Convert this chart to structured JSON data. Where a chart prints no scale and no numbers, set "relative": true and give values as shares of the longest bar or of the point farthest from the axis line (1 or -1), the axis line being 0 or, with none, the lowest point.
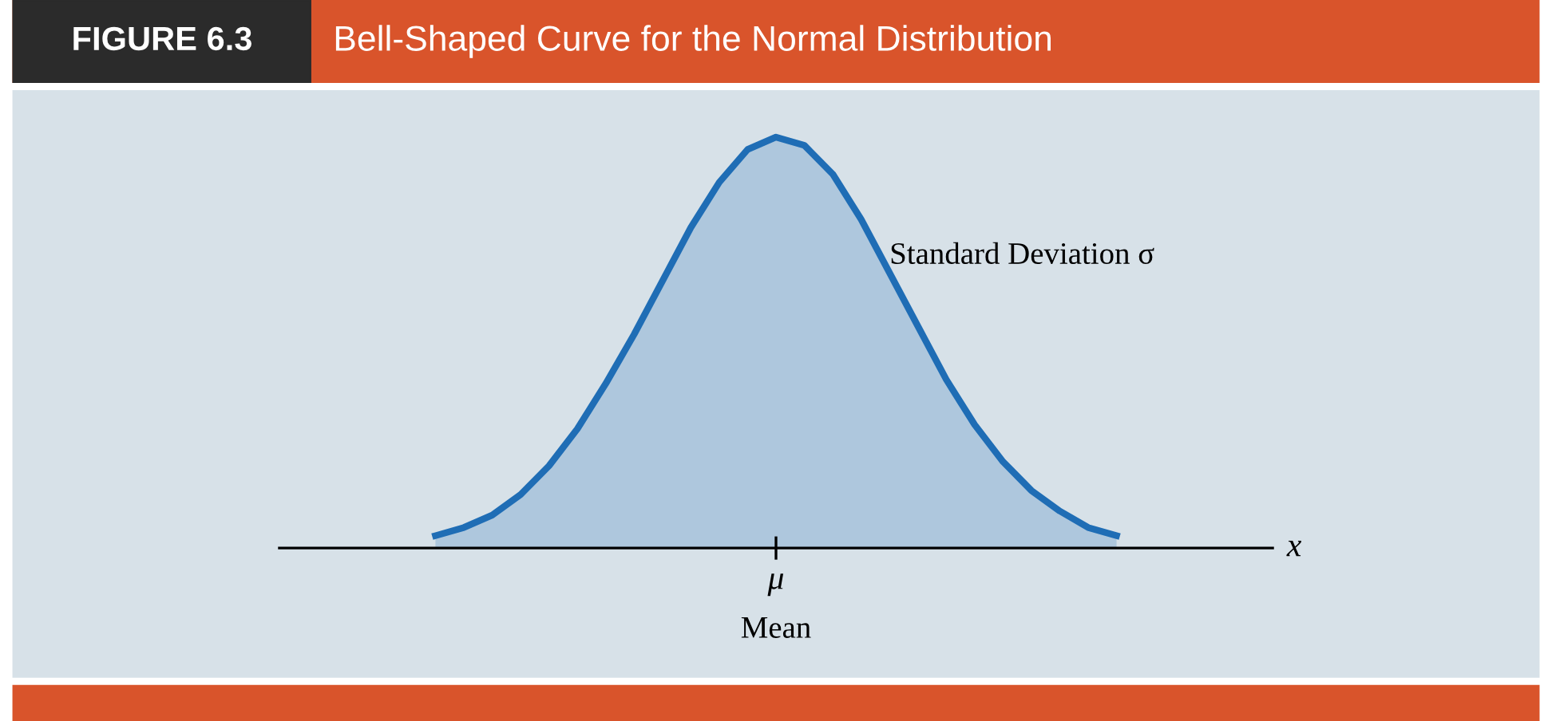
{
  "chart_data": {
    "type": "area",
    "title": "FIGURE 6.3",
    "subtitle": "Bell-Shaped Curve for the Normal Distribution",
    "xlabel": "x",
    "relative": true,
    "categories": [
      null,
      null,
      null,
      null,
      null,
      null,
      null,
      null,
      null,
      null,
      null,
      null,
      null,
      null,
      null,
      null,
      null,
      null,
      null,
      null,
      null,
      null,
      null,
      null,
      null
    ],
    "series": [
      {
        "color": "#1f6db5",
        "values": [
          0.03,
          0.05,
          0.08,
          0.13,
          0.2,
          0.29,
          0.4,
          0.52,
          0.65,
          0.78,
          0.89,
          0.97,
          1.0,
          0.98,
          0.91,
          0.8,
          0.67,
          0.54,
          0.41,
          0.3,
          0.21,
          0.14,
          0.09,
          0.05,
          0.03
        ]
      }
    ],
    "annotations": [
      "Standard Deviation σ",
      "μ",
      "Mean"
    ]
  }
}
